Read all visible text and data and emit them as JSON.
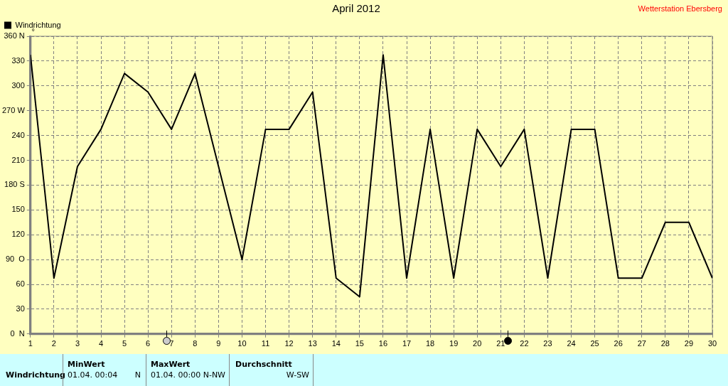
{
  "chart_data": {
    "type": "line",
    "title": "April 2012",
    "ylabel": "°",
    "x": [
      1,
      2,
      3,
      4,
      5,
      6,
      7,
      8,
      9,
      10,
      11,
      12,
      13,
      14,
      15,
      16,
      17,
      18,
      19,
      20,
      21,
      22,
      23,
      24,
      25,
      26,
      27,
      28,
      29,
      30
    ],
    "series": [
      {
        "name": "Windrichtung",
        "color": "#000000",
        "values": [
          337.5,
          67.5,
          202.5,
          247.5,
          315,
          292.5,
          247.5,
          315,
          202.5,
          90,
          247.5,
          247.5,
          292.5,
          67.5,
          45,
          337.5,
          67.5,
          247.5,
          67.5,
          247.5,
          202.5,
          247.5,
          67.5,
          247.5,
          247.5,
          67.5,
          67.5,
          135,
          135,
          67.5
        ]
      }
    ],
    "xlim": [
      1,
      30
    ],
    "xticks": [
      1,
      2,
      3,
      4,
      5,
      6,
      7,
      8,
      9,
      10,
      11,
      12,
      13,
      14,
      15,
      16,
      17,
      18,
      19,
      20,
      21,
      22,
      23,
      24,
      25,
      26,
      27,
      28,
      29,
      30
    ],
    "ylim": [
      0,
      360
    ],
    "yticks": [
      {
        "value": 0,
        "label": "0  N"
      },
      30,
      60,
      {
        "value": 90,
        "label": "90  O"
      },
      120,
      150,
      {
        "value": 180,
        "label": "180 S"
      },
      210,
      240,
      {
        "value": 270,
        "label": "270 W"
      },
      300,
      330,
      {
        "value": 360,
        "label": "360 N"
      }
    ],
    "grid": true,
    "legend": "top left",
    "marker": "none",
    "line_style": "solid",
    "annotations": [
      "Wetterstation Ebersberg",
      "Windrichtung",
      "MinWert",
      "01.04.  00:04",
      "N",
      "MaxWert",
      "01.04.  00:00",
      "N-NW",
      "Durchschnitt",
      "W-SW"
    ]
  }
}
